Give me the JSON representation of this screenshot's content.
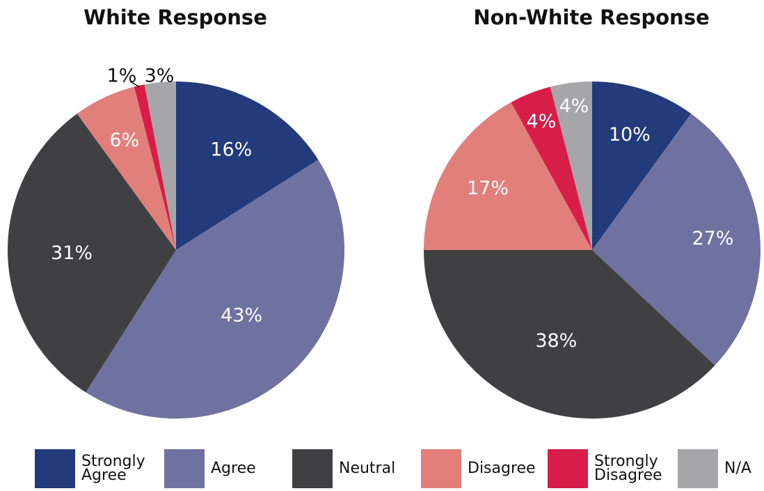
{
  "chart_data": [
    {
      "type": "pie",
      "title": "White Response",
      "categories": [
        "Strongly Agree",
        "Agree",
        "Neutral",
        "Disagree",
        "Strongly Disagree",
        "N/A"
      ],
      "values": [
        16,
        43,
        31,
        6,
        1,
        3
      ],
      "labels": [
        "16%",
        "43%",
        "31%",
        "6%",
        "1%",
        "3%"
      ],
      "start": "12 o'clock, clockwise"
    },
    {
      "type": "pie",
      "title": "Non-White Response",
      "categories": [
        "Strongly Agree",
        "Agree",
        "Neutral",
        "Disagree",
        "Strongly Disagree",
        "N/A"
      ],
      "values": [
        10,
        27,
        38,
        17,
        4,
        4
      ],
      "labels": [
        "10%",
        "27%",
        "38%",
        "17%",
        "4%",
        "4%"
      ],
      "start": "12 o'clock, clockwise"
    }
  ],
  "legend": {
    "placement": "bottom",
    "items": [
      {
        "label": "Strongly Agree",
        "lines": [
          "Strongly",
          "Agree"
        ],
        "color": "#233b7b"
      },
      {
        "label": "Agree",
        "lines": [
          "Agree"
        ],
        "color": "#6f72a0"
      },
      {
        "label": "Neutral",
        "lines": [
          "Neutral"
        ],
        "color": "#404042"
      },
      {
        "label": "Disagree",
        "lines": [
          "Disagree"
        ],
        "color": "#e27f7b"
      },
      {
        "label": "Strongly Disagree",
        "lines": [
          "Strongly",
          "Disagree"
        ],
        "color": "#d71e48"
      },
      {
        "label": "N/A",
        "lines": [
          "N/A"
        ],
        "color": "#a6a6a8"
      }
    ]
  }
}
